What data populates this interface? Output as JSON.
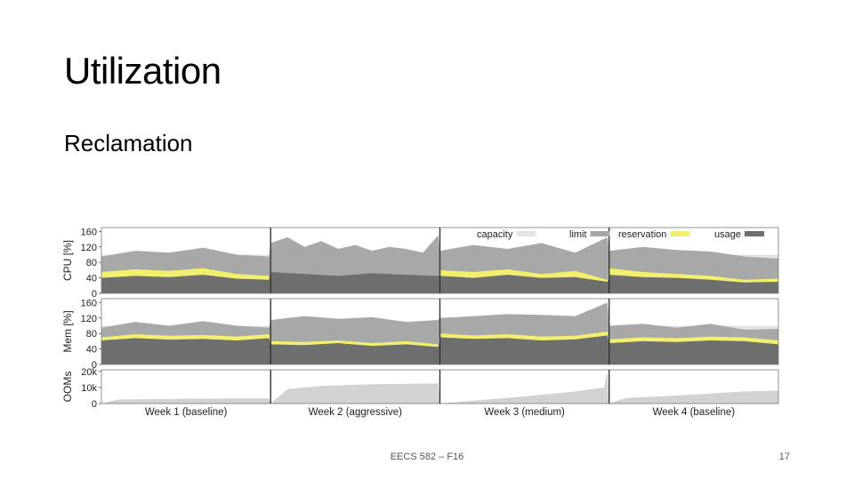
{
  "slide": {
    "title": "Utilization",
    "subtitle": "Reclamation",
    "footer": "EECS 582 – F16",
    "page_number": "17"
  },
  "chart_data": {
    "type": "area",
    "title": "",
    "legend": {
      "placement": "top-right",
      "entries": [
        {
          "label": "capacity",
          "color": "#e4e4e4"
        },
        {
          "label": "limit",
          "color": "#a8a8a8"
        },
        {
          "label": "reservation",
          "color": "#f2ef6e"
        },
        {
          "label": "usage",
          "color": "#6e6e6e"
        }
      ]
    },
    "weeks": [
      "Week 1 (baseline)",
      "Week 2 (aggressive)",
      "Week 3 (medium)",
      "Week 4 (baseline)"
    ],
    "x_range": [
      0,
      4
    ],
    "panels": [
      {
        "name": "cpu",
        "ylabel": "CPU [%]",
        "ylim": [
          0,
          170
        ],
        "yticks": [
          "160",
          "120",
          "80",
          "40",
          "0"
        ],
        "ytick_values": [
          160,
          120,
          80,
          40,
          0
        ],
        "series": [
          {
            "name": "capacity",
            "color": "#e4e4e4",
            "x": [
              0,
              4
            ],
            "values": [
              100,
              100
            ]
          },
          {
            "name": "limit",
            "color": "#a8a8a8",
            "x": [
              0,
              0.2,
              0.4,
              0.6,
              0.8,
              0.99,
              1.0,
              1.1,
              1.2,
              1.3,
              1.4,
              1.5,
              1.6,
              1.7,
              1.8,
              1.9,
              1.99,
              2.0,
              2.2,
              2.4,
              2.6,
              2.8,
              2.99,
              3.0,
              3.2,
              3.4,
              3.6,
              3.8,
              4.0
            ],
            "values": [
              95,
              110,
              105,
              118,
              100,
              95,
              130,
              145,
              120,
              135,
              115,
              125,
              110,
              120,
              115,
              105,
              150,
              110,
              125,
              115,
              130,
              105,
              145,
              110,
              120,
              112,
              108,
              95,
              90
            ]
          },
          {
            "name": "reservation",
            "color": "#f2ef6e",
            "x": [
              0,
              0.2,
              0.4,
              0.6,
              0.8,
              0.99,
              1.0,
              1.5,
              1.99,
              2.0,
              2.2,
              2.4,
              2.6,
              2.8,
              2.99,
              3.0,
              3.2,
              3.4,
              3.6,
              3.8,
              4.0
            ],
            "values": [
              55,
              62,
              58,
              65,
              50,
              45,
              0,
              0,
              0,
              60,
              55,
              62,
              50,
              58,
              35,
              65,
              55,
              50,
              45,
              35,
              38
            ]
          },
          {
            "name": "usage",
            "color": "#6e6e6e",
            "x": [
              0,
              0.2,
              0.4,
              0.6,
              0.8,
              0.99,
              1.0,
              1.2,
              1.4,
              1.6,
              1.8,
              1.99,
              2.0,
              2.2,
              2.4,
              2.6,
              2.8,
              2.99,
              3.0,
              3.2,
              3.4,
              3.6,
              3.8,
              4.0
            ],
            "values": [
              40,
              45,
              42,
              48,
              38,
              35,
              55,
              50,
              45,
              52,
              48,
              45,
              45,
              40,
              48,
              40,
              42,
              30,
              48,
              42,
              40,
              35,
              28,
              30
            ]
          }
        ]
      },
      {
        "name": "mem",
        "ylabel": "Mem [%]",
        "ylim": [
          0,
          170
        ],
        "yticks": [
          "160",
          "120",
          "80",
          "40",
          "0"
        ],
        "ytick_values": [
          160,
          120,
          80,
          40,
          0
        ],
        "series": [
          {
            "name": "capacity",
            "color": "#e4e4e4",
            "x": [
              0,
              4
            ],
            "values": [
              100,
              100
            ]
          },
          {
            "name": "limit",
            "color": "#a8a8a8",
            "x": [
              0,
              0.2,
              0.4,
              0.6,
              0.8,
              0.99,
              1.0,
              1.2,
              1.4,
              1.6,
              1.8,
              1.99,
              2.0,
              2.2,
              2.4,
              2.6,
              2.8,
              2.99,
              3.0,
              3.2,
              3.4,
              3.6,
              3.8,
              4.0
            ],
            "values": [
              95,
              110,
              100,
              112,
              100,
              95,
              115,
              125,
              118,
              122,
              110,
              115,
              120,
              125,
              130,
              128,
              125,
              160,
              100,
              105,
              95,
              105,
              90,
              92
            ]
          },
          {
            "name": "reservation",
            "color": "#f2ef6e",
            "x": [
              0,
              0.2,
              0.4,
              0.6,
              0.8,
              0.99,
              1.0,
              1.2,
              1.4,
              1.6,
              1.8,
              1.99,
              2.0,
              2.2,
              2.4,
              2.6,
              2.8,
              2.99,
              3.0,
              3.2,
              3.4,
              3.6,
              3.8,
              4.0
            ],
            "values": [
              70,
              78,
              74,
              76,
              72,
              78,
              60,
              58,
              62,
              55,
              60,
              52,
              80,
              75,
              78,
              72,
              74,
              85,
              65,
              70,
              68,
              72,
              70,
              62
            ]
          },
          {
            "name": "usage",
            "color": "#6e6e6e",
            "x": [
              0,
              0.2,
              0.4,
              0.6,
              0.8,
              0.99,
              1.0,
              1.2,
              1.4,
              1.6,
              1.8,
              1.99,
              2.0,
              2.2,
              2.4,
              2.6,
              2.8,
              2.99,
              3.0,
              3.2,
              3.4,
              3.6,
              3.8,
              4.0
            ],
            "values": [
              62,
              68,
              64,
              66,
              62,
              68,
              52,
              50,
              55,
              48,
              52,
              45,
              70,
              66,
              68,
              62,
              65,
              75,
              55,
              60,
              58,
              62,
              60,
              52
            ]
          }
        ]
      },
      {
        "name": "ooms",
        "ylabel": "OOMs",
        "ylim": [
          0,
          21000
        ],
        "yticks": [
          "20k",
          "10k",
          "0"
        ],
        "ytick_values": [
          20000,
          10000,
          0
        ],
        "series": [
          {
            "name": "ooms",
            "color": "#d2d2d2",
            "x": [
              0,
              0.1,
              0.5,
              0.99,
              1.0,
              1.1,
              1.3,
              1.6,
              1.99,
              2.0,
              2.1,
              2.4,
              2.8,
              2.97,
              2.99,
              3.0,
              3.1,
              3.4,
              3.8,
              4.0
            ],
            "values": [
              0,
              2500,
              3000,
              3200,
              0,
              9000,
              11000,
              12000,
              12500,
              0,
              1000,
              3500,
              7500,
              10000,
              20000,
              0,
              3500,
              5000,
              7500,
              8000
            ]
          }
        ]
      }
    ]
  }
}
